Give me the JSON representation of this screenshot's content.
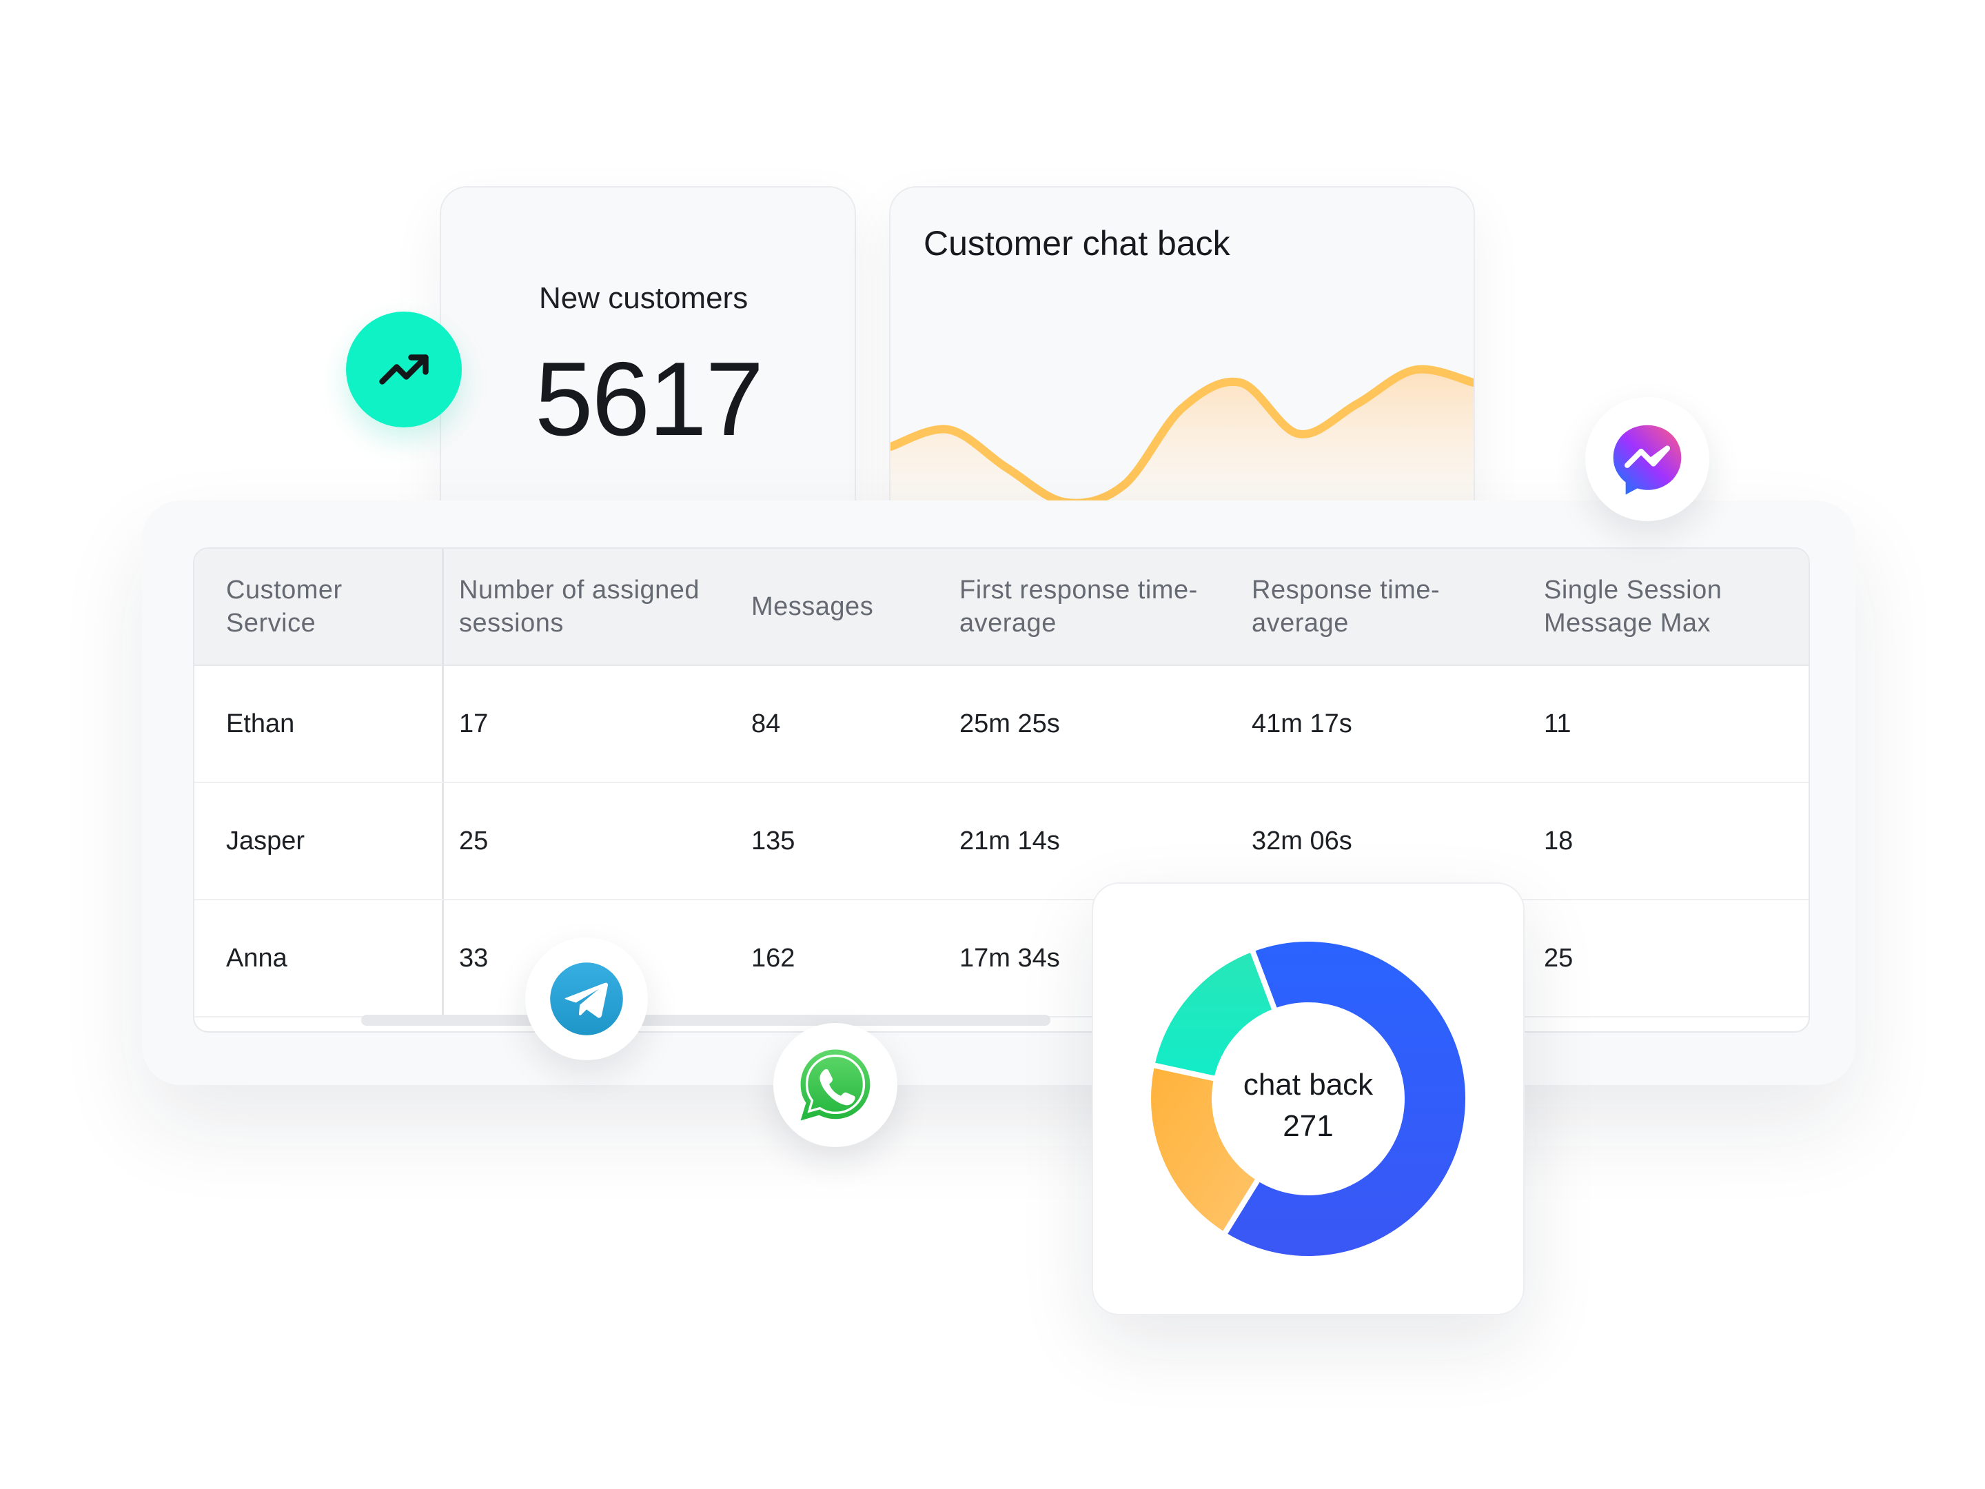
{
  "new_customers": {
    "title": "New customers",
    "value": "5617"
  },
  "chat_back_card": {
    "title": "Customer chat back"
  },
  "table": {
    "headers": [
      [
        "Customer",
        "Service"
      ],
      [
        "Number of assigned",
        "sessions"
      ],
      [
        "Messages",
        ""
      ],
      [
        "First response time-",
        "average"
      ],
      [
        "Response time-",
        "average"
      ],
      [
        "Single Session",
        "Message Max"
      ]
    ],
    "rows": [
      [
        "Ethan",
        "17",
        "84",
        "25m 25s",
        "41m 17s",
        "11"
      ],
      [
        "Jasper",
        "25",
        "135",
        "21m 14s",
        "32m 06s",
        "18"
      ],
      [
        "Anna",
        "33",
        "162",
        "17m 34s",
        "",
        "25"
      ]
    ]
  },
  "donut": {
    "label": "chat back",
    "value": "271"
  },
  "icons": {
    "trend": "trending-up-icon",
    "messenger": "messenger-icon",
    "telegram": "telegram-icon",
    "whatsapp": "whatsapp-icon"
  },
  "colors": {
    "accent_teal": "#0ff2c6",
    "line": "#ffc55a",
    "donut_blue": "#2d5cff",
    "donut_orange": "#ffb53f",
    "donut_green": "#1de9c0"
  },
  "chart_data": [
    {
      "type": "area",
      "title": "Customer chat back",
      "x": [
        0,
        1,
        2,
        3,
        4,
        5,
        6,
        7,
        8,
        9,
        10
      ],
      "values": [
        40,
        48,
        30,
        14,
        22,
        58,
        70,
        46,
        60,
        76,
        70
      ],
      "ylim": [
        0,
        100
      ],
      "xlabel": "",
      "ylabel": "",
      "grid": false
    },
    {
      "type": "pie",
      "title": "chat back",
      "total": 271,
      "slices": [
        {
          "name": "blue",
          "value": 175,
          "color": "#2d5cff"
        },
        {
          "name": "orange",
          "value": 53,
          "color": "#ffb53f"
        },
        {
          "name": "green",
          "value": 43,
          "color": "#1de9c0"
        }
      ]
    }
  ]
}
